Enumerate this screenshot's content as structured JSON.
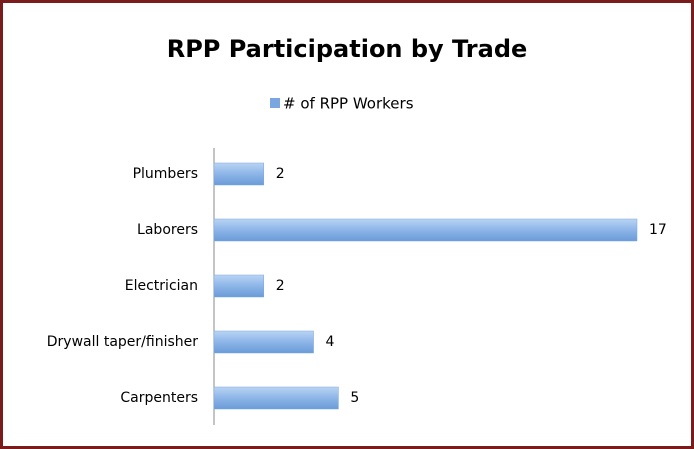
{
  "chart_data": {
    "type": "bar",
    "orientation": "horizontal",
    "title": "RPP Participation by Trade",
    "categories": [
      "Plumbers",
      "Laborers",
      "Electrician",
      "Drywall taper/finisher",
      "Carpenters"
    ],
    "series": [
      {
        "name": "# of RPP Workers",
        "color": "#7aa7e0",
        "values": [
          2,
          17,
          2,
          4,
          5
        ]
      }
    ],
    "xlim": [
      0,
      17
    ],
    "legend": "top",
    "grid": false
  }
}
